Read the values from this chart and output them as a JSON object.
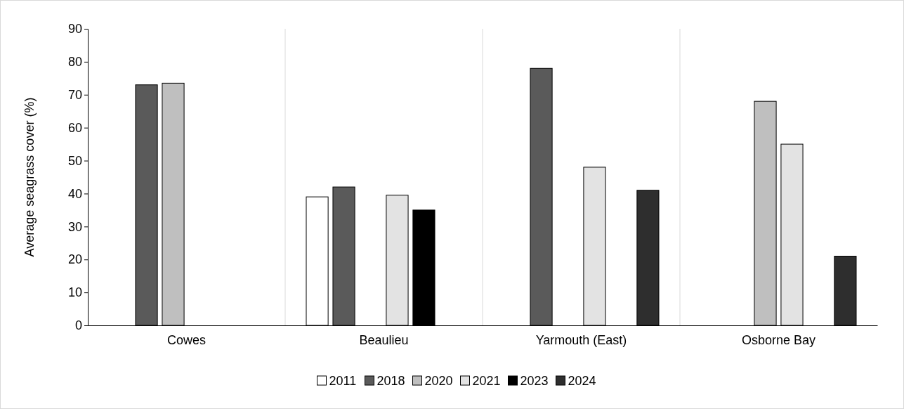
{
  "chart_data": {
    "type": "bar",
    "ylabel": "Average seagrass cover (%)",
    "categories": [
      "Cowes",
      "Beaulieu",
      "Yarmouth (East)",
      "Osborne Bay"
    ],
    "series": [
      {
        "name": "2011",
        "color": "#ffffff",
        "values": [
          null,
          39,
          null,
          null
        ]
      },
      {
        "name": "2018",
        "color": "#5a5a5a",
        "values": [
          73,
          42,
          78,
          null
        ]
      },
      {
        "name": "2020",
        "color": "#bfbfbf",
        "values": [
          73.5,
          null,
          null,
          68
        ]
      },
      {
        "name": "2021",
        "color": "#e3e3e3",
        "values": [
          null,
          39.5,
          48,
          55
        ]
      },
      {
        "name": "2023",
        "color": "#000000",
        "values": [
          null,
          35,
          null,
          null
        ]
      },
      {
        "name": "2024",
        "color": "#2e2e2e",
        "values": [
          null,
          null,
          41,
          21
        ]
      }
    ],
    "ylim": [
      0,
      90
    ],
    "yticks": [
      0,
      10,
      20,
      30,
      40,
      50,
      60,
      70,
      80,
      90
    ],
    "grid": "x",
    "legend": "bottom"
  }
}
